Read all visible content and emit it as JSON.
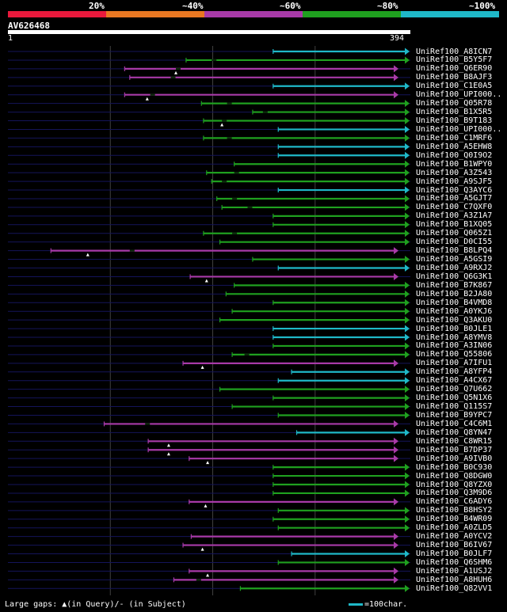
{
  "legend": {
    "labels": [
      "20%",
      "~40%",
      "~60%",
      "~80%",
      "~100%"
    ],
    "colors": [
      "#e8193c",
      "#e87722",
      "#a83aa8",
      "#1fa01f",
      "#1fb8c8"
    ]
  },
  "query": {
    "id": "AV626468",
    "start": "1",
    "end": "394",
    "length": 394
  },
  "hits": [
    {
      "name": "UniRef100_A8ICN7",
      "start": 260,
      "c": "cyan",
      "gaps": []
    },
    {
      "name": "UniRef100_B5Y5F7",
      "start": 175,
      "c": "green",
      "gaps": [
        200
      ]
    },
    {
      "name": "UniRef100_Q6ER90",
      "start": 115,
      "c": "purple",
      "gaps": [
        165
      ]
    },
    {
      "name": "UniRef100_B8AJF3",
      "start": 120,
      "c": "purple",
      "gaps": [
        160
      ]
    },
    {
      "name": "UniRef100_C1E0A5",
      "start": 260,
      "c": "cyan",
      "gaps": []
    },
    {
      "name": "UniRef100_UPI000..",
      "start": 115,
      "c": "purple",
      "gaps": [
        140
      ]
    },
    {
      "name": "UniRef100_Q05R78",
      "start": 190,
      "c": "green",
      "gaps": [
        215
      ]
    },
    {
      "name": "UniRef100_B1X5R5",
      "start": 240,
      "c": "green",
      "gaps": [
        250
      ]
    },
    {
      "name": "UniRef100_B9T183",
      "start": 192,
      "c": "green",
      "gaps": [
        210
      ]
    },
    {
      "name": "UniRef100_UPI000..",
      "start": 265,
      "c": "cyan",
      "gaps": []
    },
    {
      "name": "UniRef100_C1MRF6",
      "start": 192,
      "c": "green",
      "gaps": [
        215
      ]
    },
    {
      "name": "UniRef100_A5EHW8",
      "start": 265,
      "c": "cyan",
      "gaps": []
    },
    {
      "name": "UniRef100_Q0I9O2",
      "start": 265,
      "c": "cyan",
      "gaps": []
    },
    {
      "name": "UniRef100_B1WPY0",
      "start": 222,
      "c": "green",
      "gaps": []
    },
    {
      "name": "UniRef100_A3Z543",
      "start": 195,
      "c": "green",
      "gaps": [
        222
      ]
    },
    {
      "name": "UniRef100_A9SJF5",
      "start": 200,
      "c": "green",
      "gaps": [
        210
      ]
    },
    {
      "name": "UniRef100_Q3AYC6",
      "start": 265,
      "c": "cyan",
      "gaps": []
    },
    {
      "name": "UniRef100_A5GJT7",
      "start": 205,
      "c": "green",
      "gaps": [
        220
      ]
    },
    {
      "name": "UniRef100_C7QXF0",
      "start": 210,
      "c": "green",
      "gaps": [
        235
      ]
    },
    {
      "name": "UniRef100_A3Z1A7",
      "start": 260,
      "c": "green",
      "gaps": []
    },
    {
      "name": "UniRef100_B1XQ05",
      "start": 260,
      "c": "green",
      "gaps": []
    },
    {
      "name": "UniRef100_Q065Z1",
      "start": 192,
      "c": "green",
      "gaps": [
        220
      ]
    },
    {
      "name": "UniRef100_D0CI55",
      "start": 208,
      "c": "green",
      "gaps": []
    },
    {
      "name": "UniRef100_B8LPQ4",
      "start": 43,
      "c": "purple",
      "gaps": [
        120
      ]
    },
    {
      "name": "UniRef100_A5GSI9",
      "start": 240,
      "c": "green",
      "gaps": []
    },
    {
      "name": "UniRef100_A9RXJ2",
      "start": 265,
      "c": "cyan",
      "gaps": []
    },
    {
      "name": "UniRef100_Q6G3K1",
      "start": 179,
      "c": "purple",
      "gaps": []
    },
    {
      "name": "UniRef100_B7K867",
      "start": 222,
      "c": "green",
      "gaps": []
    },
    {
      "name": "UniRef100_B2JA80",
      "start": 214,
      "c": "green",
      "gaps": []
    },
    {
      "name": "UniRef100_B4VMD8",
      "start": 260,
      "c": "green",
      "gaps": []
    },
    {
      "name": "UniRef100_A0YKJ6",
      "start": 220,
      "c": "green",
      "gaps": []
    },
    {
      "name": "UniRef100_Q3AKU0",
      "start": 208,
      "c": "green",
      "gaps": []
    },
    {
      "name": "UniRef100_B0JLE1",
      "start": 260,
      "c": "cyan",
      "gaps": []
    },
    {
      "name": "UniRef100_A8YMV8",
      "start": 260,
      "c": "cyan",
      "gaps": []
    },
    {
      "name": "UniRef100_A3IN06",
      "start": 260,
      "c": "green",
      "gaps": []
    },
    {
      "name": "UniRef100_Q55806",
      "start": 220,
      "c": "green",
      "gaps": [
        232
      ]
    },
    {
      "name": "UniRef100_A7IFU1",
      "start": 172,
      "c": "purple",
      "gaps": []
    },
    {
      "name": "UniRef100_A8YFP4",
      "start": 278,
      "c": "cyan",
      "gaps": []
    },
    {
      "name": "UniRef100_A4CX67",
      "start": 265,
      "c": "cyan",
      "gaps": []
    },
    {
      "name": "UniRef100_Q7U662",
      "start": 208,
      "c": "green",
      "gaps": []
    },
    {
      "name": "UniRef100_Q5N1X6",
      "start": 260,
      "c": "green",
      "gaps": []
    },
    {
      "name": "UniRef100_Q115S7",
      "start": 220,
      "c": "green",
      "gaps": []
    },
    {
      "name": "UniRef100_B9YPC7",
      "start": 265,
      "c": "green",
      "gaps": []
    },
    {
      "name": "UniRef100_C4C6M1",
      "start": 95,
      "c": "purple",
      "gaps": [
        135
      ]
    },
    {
      "name": "UniRef100_Q8YN47",
      "start": 283,
      "c": "cyan",
      "gaps": []
    },
    {
      "name": "UniRef100_C8WR15",
      "start": 138,
      "c": "purple",
      "gaps": []
    },
    {
      "name": "UniRef100_B7DP37",
      "start": 138,
      "c": "purple",
      "gaps": []
    },
    {
      "name": "UniRef100_A9IVB0",
      "start": 178,
      "c": "purple",
      "gaps": []
    },
    {
      "name": "UniRef100_B0C930",
      "start": 260,
      "c": "green",
      "gaps": []
    },
    {
      "name": "UniRef100_Q8DGW0",
      "start": 260,
      "c": "green",
      "gaps": []
    },
    {
      "name": "UniRef100_Q8YZX0",
      "start": 260,
      "c": "green",
      "gaps": []
    },
    {
      "name": "UniRef100_Q3M9D6",
      "start": 260,
      "c": "green",
      "gaps": []
    },
    {
      "name": "UniRef100_C6ADY6",
      "start": 178,
      "c": "purple",
      "gaps": []
    },
    {
      "name": "UniRef100_B8HSY2",
      "start": 265,
      "c": "green",
      "gaps": []
    },
    {
      "name": "UniRef100_B4WR09",
      "start": 260,
      "c": "green",
      "gaps": []
    },
    {
      "name": "UniRef100_A0ZLD5",
      "start": 265,
      "c": "green",
      "gaps": []
    },
    {
      "name": "UniRef100_A0YCV2",
      "start": 180,
      "c": "purple",
      "gaps": []
    },
    {
      "name": "UniRef100_B6IV67",
      "start": 172,
      "c": "purple",
      "gaps": []
    },
    {
      "name": "UniRef100_B0JLF7",
      "start": 278,
      "c": "cyan",
      "gaps": []
    },
    {
      "name": "UniRef100_Q6SHM6",
      "start": 265,
      "c": "green",
      "gaps": []
    },
    {
      "name": "UniRef100_A1USJ2",
      "start": 178,
      "c": "purple",
      "gaps": []
    },
    {
      "name": "UniRef100_A8HUH6",
      "start": 163,
      "c": "purple",
      "gaps": [
        185
      ]
    },
    {
      "name": "UniRef100_Q82VV1",
      "start": 228,
      "c": "green",
      "gaps": []
    }
  ],
  "insertions": [
    {
      "row": 2,
      "pos": 165
    },
    {
      "row": 5,
      "pos": 137
    },
    {
      "row": 8,
      "pos": 210
    },
    {
      "row": 23,
      "pos": 79
    },
    {
      "row": 26,
      "pos": 195
    },
    {
      "row": 36,
      "pos": 191
    },
    {
      "row": 45,
      "pos": 158
    },
    {
      "row": 46,
      "pos": 158
    },
    {
      "row": 47,
      "pos": 196
    },
    {
      "row": 52,
      "pos": 194
    },
    {
      "row": 57,
      "pos": 191
    },
    {
      "row": 60,
      "pos": 196
    }
  ],
  "footer": {
    "left_text": "Large gaps: ▲(in Query)/- (in Subject)",
    "right_text": "=100char."
  },
  "series_colors": {
    "cyan": "#1fb8c8",
    "green": "#1fa01f",
    "purple": "#a83aa8",
    "navy": "#14145a",
    "grid": "#404040"
  }
}
